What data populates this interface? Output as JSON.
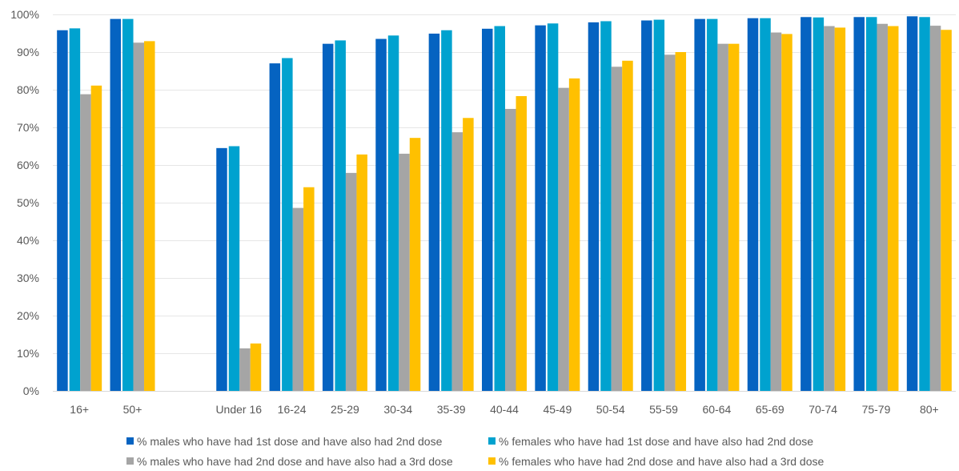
{
  "chart_data": {
    "type": "bar",
    "categories": [
      "16+",
      "50+",
      "",
      "Under 16",
      "16-24",
      "25-29",
      "30-34",
      "35-39",
      "40-44",
      "45-49",
      "50-54",
      "55-59",
      "60-64",
      "65-69",
      "70-74",
      "75-79",
      "80+"
    ],
    "series": [
      {
        "name": "% males who have had 1st dose and have also had 2nd dose",
        "color": "#0563C1",
        "values": [
          95.8,
          98.8,
          null,
          64.5,
          87.0,
          92.2,
          93.5,
          94.9,
          96.2,
          97.1,
          97.9,
          98.4,
          98.8,
          99.0,
          99.3,
          99.3,
          99.5
        ]
      },
      {
        "name": "% females who have had 1st dose and have also had 2nd dose",
        "color": "#00A2CF",
        "values": [
          96.3,
          98.8,
          null,
          65.0,
          88.4,
          93.1,
          94.4,
          95.8,
          96.9,
          97.6,
          98.2,
          98.6,
          98.8,
          99.0,
          99.2,
          99.3,
          99.3
        ]
      },
      {
        "name": "% males who have had 2nd dose and have also had a 3rd dose",
        "color": "#A5A5A5",
        "values": [
          78.8,
          92.5,
          null,
          11.3,
          48.6,
          57.9,
          63.0,
          68.7,
          74.9,
          80.5,
          86.1,
          89.3,
          92.2,
          95.2,
          96.9,
          97.5,
          97.0
        ]
      },
      {
        "name": "% females who have had 2nd dose and have also had a 3rd dose",
        "color": "#FFC000",
        "values": [
          81.1,
          92.9,
          null,
          12.6,
          54.1,
          62.8,
          67.2,
          72.5,
          78.3,
          83.0,
          87.7,
          90.0,
          92.2,
          94.8,
          96.5,
          96.9,
          95.9
        ]
      }
    ],
    "yticks": [
      "0%",
      "10%",
      "20%",
      "30%",
      "40%",
      "50%",
      "60%",
      "70%",
      "80%",
      "90%",
      "100%"
    ],
    "ylim": [
      0,
      100
    ],
    "grid": true,
    "legend_position": "bottom"
  }
}
